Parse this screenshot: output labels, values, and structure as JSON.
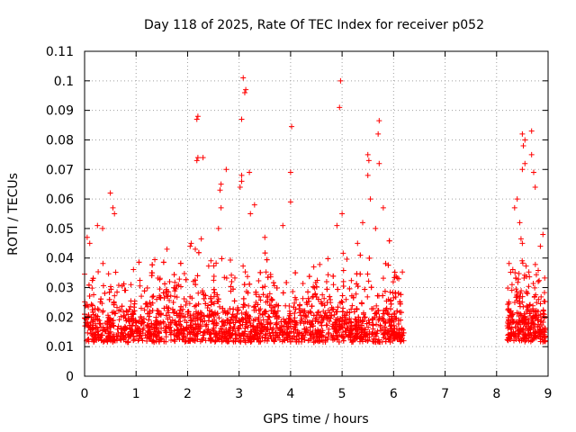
{
  "chart_data": {
    "type": "scatter",
    "title": "Day 118 of 2025, Rate Of TEC Index for receiver p052",
    "xlabel": "GPS time / hours",
    "ylabel": "ROTI / TECUs",
    "xlim": [
      0,
      9
    ],
    "ylim": [
      0,
      0.11
    ],
    "xticks": [
      "0",
      "1",
      "2",
      "3",
      "4",
      "5",
      "6",
      "7",
      "8",
      "9"
    ],
    "yticks": [
      "0",
      "0.01",
      "0.02",
      "0.03",
      "0.04",
      "0.05",
      "0.06",
      "0.07",
      "0.08",
      "0.09",
      "0.1",
      "0.11"
    ],
    "grid": true,
    "marker": "+",
    "color": "#ff0000",
    "series": [
      {
        "name": "p052",
        "segments": [
          [
            0.0,
            6.2
          ],
          [
            8.2,
            8.95
          ]
        ],
        "outliers": [
          [
            3.08,
            0.101
          ],
          [
            3.13,
            0.097
          ],
          [
            3.11,
            0.096
          ],
          [
            4.97,
            0.1
          ],
          [
            4.95,
            0.091
          ],
          [
            2.2,
            0.088
          ],
          [
            2.18,
            0.087
          ],
          [
            3.05,
            0.087
          ],
          [
            4.02,
            0.0845
          ],
          [
            5.72,
            0.0865
          ],
          [
            5.7,
            0.082
          ],
          [
            8.5,
            0.082
          ],
          [
            8.55,
            0.08
          ],
          [
            8.68,
            0.083
          ],
          [
            8.52,
            0.078
          ],
          [
            2.2,
            0.074
          ],
          [
            2.3,
            0.074
          ],
          [
            2.18,
            0.073
          ],
          [
            5.5,
            0.075
          ],
          [
            5.52,
            0.073
          ],
          [
            5.72,
            0.072
          ],
          [
            2.75,
            0.07
          ],
          [
            3.05,
            0.068
          ],
          [
            3.2,
            0.069
          ],
          [
            4.0,
            0.069
          ],
          [
            5.5,
            0.068
          ],
          [
            8.68,
            0.075
          ],
          [
            8.5,
            0.07
          ],
          [
            8.55,
            0.072
          ],
          [
            8.72,
            0.069
          ],
          [
            8.75,
            0.064
          ],
          [
            0.5,
            0.062
          ],
          [
            2.65,
            0.065
          ],
          [
            2.63,
            0.063
          ],
          [
            8.4,
            0.06
          ],
          [
            3.05,
            0.066
          ],
          [
            3.02,
            0.064
          ],
          [
            0.55,
            0.057
          ],
          [
            0.58,
            0.055
          ],
          [
            3.3,
            0.058
          ],
          [
            3.22,
            0.055
          ],
          [
            4.0,
            0.059
          ],
          [
            5.0,
            0.055
          ],
          [
            5.55,
            0.06
          ],
          [
            5.8,
            0.057
          ],
          [
            8.35,
            0.057
          ],
          [
            8.45,
            0.052
          ],
          [
            0.1,
            0.045
          ],
          [
            0.05,
            0.047
          ],
          [
            0.25,
            0.051
          ],
          [
            0.35,
            0.05
          ],
          [
            1.6,
            0.043
          ],
          [
            2.05,
            0.044
          ],
          [
            2.15,
            0.043
          ],
          [
            2.6,
            0.05
          ],
          [
            2.65,
            0.057
          ],
          [
            3.5,
            0.047
          ],
          [
            3.85,
            0.051
          ],
          [
            4.9,
            0.051
          ],
          [
            5.3,
            0.045
          ],
          [
            5.4,
            0.052
          ],
          [
            5.65,
            0.05
          ],
          [
            8.5,
            0.045
          ],
          [
            8.9,
            0.048
          ],
          [
            8.85,
            0.044
          ],
          [
            0.9,
            0.031
          ],
          [
            1.4,
            0.026
          ],
          [
            4.45,
            0.037
          ],
          [
            4.7,
            0.032
          ],
          [
            6.1,
            0.033
          ],
          [
            8.3,
            0.031
          ],
          [
            8.6,
            0.028
          ],
          [
            5.9,
            0.026
          ],
          [
            1.1,
            0.023
          ],
          [
            1.75,
            0.027
          ]
        ]
      }
    ]
  }
}
